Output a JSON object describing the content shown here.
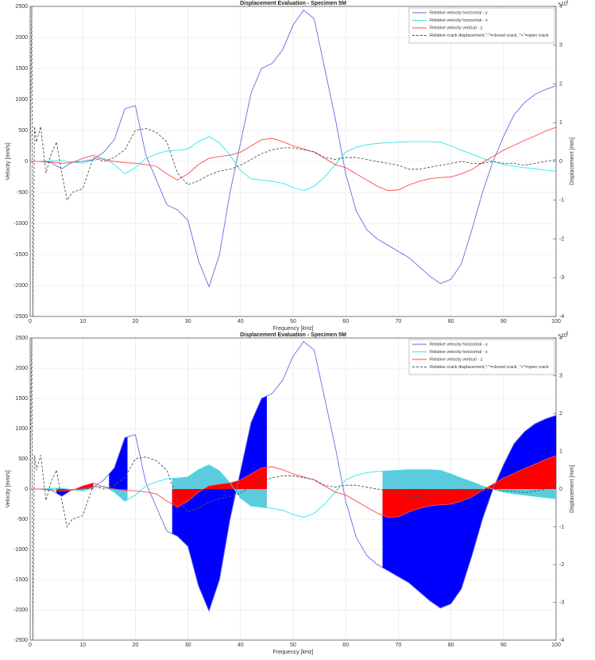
{
  "chart_data": [
    {
      "type": "line",
      "title": "Displacement Evaluation - Specimen 5M",
      "x_label": "Frequency [kHz]",
      "y_label": "Velocity [mm/s]",
      "y2_label": "Displacement [mm]",
      "y2_scale_label": "×10",
      "y2_scale_exponent": "-3",
      "xlim": [
        0,
        100
      ],
      "xticks": [
        0,
        10,
        20,
        30,
        40,
        50,
        60,
        70,
        80,
        90,
        100
      ],
      "ylim": [
        -2500,
        2500
      ],
      "yticks": [
        -2500,
        -2000,
        -1500,
        -1000,
        -500,
        0,
        500,
        1000,
        1500,
        2000,
        2500
      ],
      "y2lim": [
        -4,
        4
      ],
      "y2ticks": [
        -4,
        -3,
        -2,
        -1,
        0,
        1,
        2,
        3,
        4
      ],
      "grid": true,
      "legend": "upper right",
      "x": [
        0,
        2,
        4,
        6,
        8,
        10,
        12,
        14,
        16,
        18,
        20,
        22,
        24,
        26,
        28,
        30,
        32,
        34,
        36,
        38,
        40,
        42,
        44,
        46,
        48,
        50,
        52,
        54,
        56,
        58,
        60,
        62,
        64,
        66,
        68,
        70,
        72,
        74,
        76,
        78,
        80,
        82,
        84,
        86,
        88,
        90,
        92,
        94,
        96,
        98,
        100
      ],
      "series": [
        {
          "name": "Relative velocity horizontal - y",
          "color": "#6a6ae0",
          "values": [
            0,
            0,
            -20,
            -120,
            -10,
            0,
            30,
            150,
            350,
            850,
            900,
            100,
            -300,
            -700,
            -780,
            -950,
            -1600,
            -2020,
            -1500,
            -500,
            300,
            1100,
            1500,
            1580,
            1800,
            2200,
            2440,
            2300,
            1500,
            700,
            -200,
            -800,
            -1100,
            -1250,
            -1350,
            -1450,
            -1550,
            -1700,
            -1850,
            -1970,
            -1900,
            -1650,
            -1100,
            -500,
            0,
            400,
            750,
            950,
            1080,
            1160,
            1220
          ]
        },
        {
          "name": "Relative velocity horizontal - x",
          "color": "#30e8e8",
          "values": [
            0,
            0,
            10,
            10,
            -10,
            -30,
            20,
            50,
            -50,
            -200,
            -100,
            50,
            120,
            170,
            180,
            200,
            320,
            400,
            300,
            100,
            -150,
            -280,
            -300,
            -320,
            -350,
            -420,
            -470,
            -400,
            -250,
            -50,
            150,
            230,
            270,
            290,
            300,
            310,
            320,
            320,
            320,
            310,
            250,
            180,
            120,
            50,
            0,
            -50,
            -80,
            -100,
            -120,
            -140,
            -160
          ]
        },
        {
          "name": "Relative velocity vertical - z",
          "color": "#ff4a4a",
          "values": [
            0,
            0,
            -10,
            -30,
            -20,
            50,
            100,
            30,
            0,
            -20,
            -30,
            -50,
            -80,
            -200,
            -300,
            -200,
            -50,
            50,
            80,
            100,
            150,
            250,
            350,
            370,
            320,
            250,
            200,
            150,
            50,
            -50,
            -100,
            -200,
            -300,
            -400,
            -470,
            -460,
            -380,
            -320,
            -280,
            -260,
            -250,
            -200,
            -130,
            -20,
            80,
            180,
            260,
            340,
            410,
            490,
            550
          ]
        },
        {
          "name": "Relative crack displacement,\"-\"=closed crack, \"+\"=open crack",
          "color": "#555555",
          "line_style": "dashed",
          "axis": "y2",
          "x": [
            0,
            0.3,
            0.5,
            0.8,
            1.2,
            2,
            3,
            4,
            5,
            6,
            7,
            8,
            10,
            12,
            14,
            16,
            18,
            20,
            22,
            24,
            26,
            28,
            30,
            32,
            34,
            36,
            38,
            40,
            42,
            44,
            46,
            48,
            50,
            52,
            54,
            56,
            58,
            60,
            62,
            64,
            66,
            68,
            70,
            72,
            74,
            76,
            78,
            80,
            82,
            84,
            86,
            88,
            90,
            92,
            94,
            96,
            98,
            100
          ],
          "values": [
            0,
            4,
            -4,
            0.9,
            0.5,
            0.9,
            -0.3,
            0.2,
            0.5,
            -0.3,
            -1.0,
            -0.8,
            -0.7,
            0.1,
            0,
            0.1,
            0.3,
            0.8,
            0.85,
            0.75,
            0.5,
            -0.3,
            -0.6,
            -0.5,
            -0.35,
            -0.25,
            -0.2,
            -0.1,
            0.05,
            0.2,
            0.3,
            0.35,
            0.35,
            0.3,
            0.25,
            0.1,
            0.05,
            0.1,
            0.1,
            0.05,
            0,
            -0.05,
            -0.1,
            -0.2,
            -0.2,
            -0.15,
            -0.1,
            -0.05,
            0,
            -0.05,
            -0.05,
            0,
            -0.05,
            -0.05,
            -0.1,
            -0.05,
            0,
            0.05
          ]
        }
      ]
    },
    {
      "type": "line",
      "title": "Displacement Evaluation - Specimen 5M",
      "x_label": "Frequency [kHz]",
      "y_label": "Velocity [mm/s]",
      "y2_label": "Displacement [mm]",
      "y2_scale_label": "×10",
      "y2_scale_exponent": "-3",
      "xlim": [
        0,
        100
      ],
      "xticks": [
        0,
        10,
        20,
        30,
        40,
        50,
        60,
        70,
        80,
        90,
        100
      ],
      "ylim": [
        -2500,
        2500
      ],
      "yticks": [
        -2500,
        -2000,
        -1500,
        -1000,
        -500,
        0,
        500,
        1000,
        1500,
        2000,
        2500
      ],
      "y2lim": [
        -4,
        4
      ],
      "y2ticks": [
        -4,
        -3,
        -2,
        -1,
        0,
        1,
        2,
        3,
        4
      ],
      "grid": true,
      "legend": "upper right",
      "fill_ranges": [
        [
          5,
          12
        ],
        [
          15,
          18.5
        ],
        [
          27,
          45
        ],
        [
          67,
          100
        ]
      ],
      "x": [
        0,
        2,
        4,
        6,
        8,
        10,
        12,
        14,
        16,
        18,
        20,
        22,
        24,
        26,
        28,
        30,
        32,
        34,
        36,
        38,
        40,
        42,
        44,
        46,
        48,
        50,
        52,
        54,
        56,
        58,
        60,
        62,
        64,
        66,
        68,
        70,
        72,
        74,
        76,
        78,
        80,
        82,
        84,
        86,
        88,
        90,
        92,
        94,
        96,
        98,
        100
      ],
      "series": [
        {
          "name": "Relative velocity horizontal - y",
          "color": "#6a6ae0",
          "fill_color": "#0000ff",
          "values": [
            0,
            0,
            -20,
            -120,
            -10,
            0,
            30,
            150,
            350,
            850,
            900,
            100,
            -300,
            -700,
            -780,
            -950,
            -1600,
            -2020,
            -1500,
            -500,
            300,
            1100,
            1500,
            1580,
            1800,
            2200,
            2440,
            2300,
            1500,
            700,
            -200,
            -800,
            -1100,
            -1250,
            -1350,
            -1450,
            -1550,
            -1700,
            -1850,
            -1970,
            -1900,
            -1650,
            -1100,
            -500,
            0,
            400,
            750,
            950,
            1080,
            1160,
            1220
          ]
        },
        {
          "name": "Relative velocity horizontal - x",
          "color": "#30e8e8",
          "fill_color": "#5ccbdd",
          "values": [
            0,
            0,
            10,
            10,
            -10,
            -30,
            20,
            50,
            -50,
            -200,
            -100,
            50,
            120,
            170,
            180,
            200,
            320,
            400,
            300,
            100,
            -150,
            -280,
            -300,
            -320,
            -350,
            -420,
            -470,
            -400,
            -250,
            -50,
            150,
            230,
            270,
            290,
            300,
            310,
            320,
            320,
            320,
            310,
            250,
            180,
            120,
            50,
            0,
            -50,
            -80,
            -100,
            -120,
            -140,
            -160
          ]
        },
        {
          "name": "Relative velocity vertical - z",
          "color": "#ff4a4a",
          "fill_color": "#ff0000",
          "values": [
            0,
            0,
            -10,
            -30,
            -20,
            50,
            100,
            30,
            0,
            -20,
            -30,
            -50,
            -80,
            -200,
            -300,
            -200,
            -50,
            50,
            80,
            100,
            150,
            250,
            350,
            370,
            320,
            250,
            200,
            150,
            50,
            -50,
            -100,
            -200,
            -300,
            -400,
            -470,
            -460,
            -380,
            -320,
            -280,
            -260,
            -250,
            -200,
            -130,
            -20,
            80,
            180,
            260,
            340,
            410,
            490,
            550
          ]
        },
        {
          "name": "Relative crack displacement,\"-\"=closed crack, \"+\"=open crack",
          "color": "#555555",
          "line_style": "dashed",
          "axis": "y2",
          "x": [
            0,
            0.3,
            0.5,
            0.8,
            1.2,
            2,
            3,
            4,
            5,
            6,
            7,
            8,
            10,
            12,
            14,
            16,
            18,
            20,
            22,
            24,
            26,
            28,
            30,
            32,
            34,
            36,
            38,
            40,
            42,
            44,
            46,
            48,
            50,
            52,
            54,
            56,
            58,
            60,
            62,
            64,
            66,
            68,
            70,
            72,
            74,
            76,
            78,
            80,
            82,
            84,
            86,
            88,
            90,
            92,
            94,
            96,
            98,
            100
          ],
          "values": [
            0,
            4,
            -4,
            0.9,
            0.5,
            0.9,
            -0.3,
            0.2,
            0.5,
            -0.3,
            -1.0,
            -0.8,
            -0.7,
            0.1,
            0,
            0.1,
            0.3,
            0.8,
            0.85,
            0.75,
            0.5,
            -0.3,
            -0.6,
            -0.5,
            -0.35,
            -0.25,
            -0.2,
            -0.1,
            0.05,
            0.2,
            0.3,
            0.35,
            0.35,
            0.3,
            0.25,
            0.1,
            0.05,
            0.1,
            0.1,
            0.05,
            0,
            -0.05,
            -0.1,
            -0.2,
            -0.2,
            -0.15,
            -0.1,
            -0.05,
            0,
            -0.05,
            -0.05,
            0,
            -0.05,
            -0.05,
            -0.1,
            -0.05,
            0,
            0.05
          ]
        }
      ]
    }
  ]
}
